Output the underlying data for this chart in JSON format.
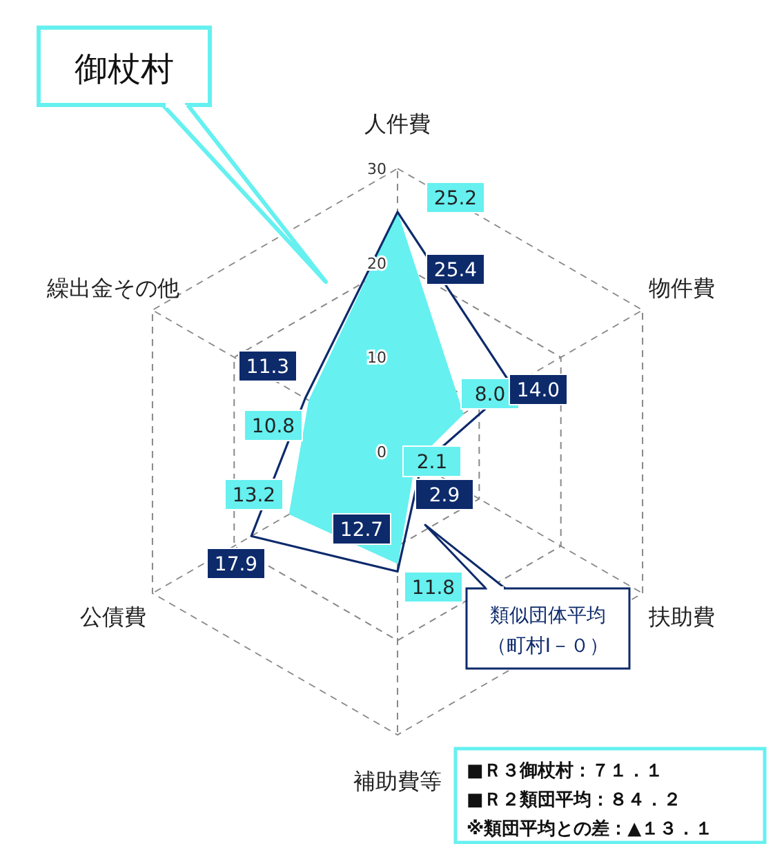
{
  "chart_data": {
    "type": "radar",
    "categories": [
      "人件費",
      "物件費",
      "扶助費",
      "補助費等",
      "公債費",
      "繰出金その他"
    ],
    "series": [
      {
        "name": "御杖村",
        "color": "#66f0f0",
        "values": [
          25.2,
          8.0,
          2.1,
          11.8,
          13.2,
          10.8
        ],
        "value_labels": [
          "25.2",
          "8.0",
          "2.1",
          "11.8",
          "13.2",
          "10.8"
        ]
      },
      {
        "name": "類似団体平均（町村Ⅰ－０）",
        "color": "#0d2a6b",
        "values": [
          25.4,
          14.0,
          2.9,
          12.7,
          17.9,
          11.3
        ],
        "value_labels": [
          "25.4",
          "14.0",
          "2.9",
          "12.7",
          "17.9",
          "11.3"
        ]
      }
    ],
    "ylim": [
      0,
      30
    ],
    "yticks": [
      0,
      10,
      20,
      30
    ],
    "grid": true,
    "annotations": [
      "■Ｒ３御杖村：７１．１",
      "■Ｒ２類団平均：８４．２",
      "※類団平均との差：▲１３．１"
    ]
  }
}
